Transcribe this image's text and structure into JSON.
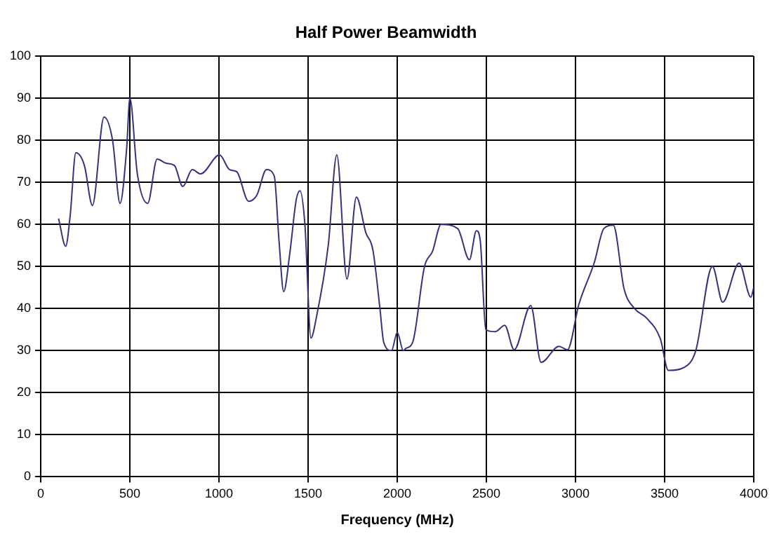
{
  "chart_data": {
    "type": "line",
    "title": "Half Power Beamwidth",
    "xlabel": "Frequency (MHz)",
    "x": [
      100,
      140,
      165,
      197,
      245,
      290,
      355,
      403,
      445,
      482,
      500,
      542,
      600,
      653,
      705,
      750,
      797,
      850,
      897,
      1003,
      1060,
      1100,
      1166,
      1213,
      1266,
      1310,
      1337,
      1363,
      1397,
      1434,
      1455,
      1482,
      1516,
      1547,
      1613,
      1661,
      1718,
      1771,
      1824,
      1863,
      1903,
      1924,
      1968,
      2000,
      2034,
      2048,
      2087,
      2153,
      2198,
      2246,
      2339,
      2405,
      2444,
      2466,
      2497,
      2550,
      2603,
      2656,
      2749,
      2807,
      2907,
      2955,
      3019,
      3106,
      3159,
      3212,
      3273,
      3331,
      3397,
      3476,
      3521,
      3609,
      3675,
      3768,
      3826,
      3918,
      3984,
      4000
    ],
    "series": [
      {
        "color": "#333380",
        "values": [
          61.4,
          54.8,
          62,
          77,
          74,
          64.5,
          85.5,
          80,
          65,
          78,
          90,
          72,
          65,
          75.5,
          74.5,
          74,
          69,
          73,
          72,
          76.5,
          73,
          72.5,
          65.5,
          67,
          73,
          71.5,
          56,
          44,
          53,
          66,
          68,
          60,
          33,
          38,
          55,
          76.5,
          47,
          66.5,
          58,
          54,
          40,
          32,
          30,
          34.3,
          30,
          30.5,
          32,
          50,
          53.6,
          60,
          59,
          51.6,
          58.5,
          56,
          35,
          34.5,
          36,
          30.2,
          40.7,
          27.2,
          31,
          30.2,
          41,
          51,
          59,
          59.8,
          44.6,
          40,
          37.8,
          32.8,
          25.3,
          26,
          30,
          50,
          41.5,
          50.8,
          42.7,
          45
        ]
      }
    ],
    "xlim": [
      0,
      4000
    ],
    "xticks": [
      0,
      500,
      1000,
      1500,
      2000,
      2500,
      3000,
      3500,
      4000
    ],
    "ylim": [
      0,
      100
    ],
    "yticks": [
      0,
      10,
      20,
      30,
      40,
      50,
      60,
      70,
      80,
      90,
      100
    ],
    "grid": true,
    "legend": false,
    "marker": "none",
    "line_style": "solid"
  }
}
